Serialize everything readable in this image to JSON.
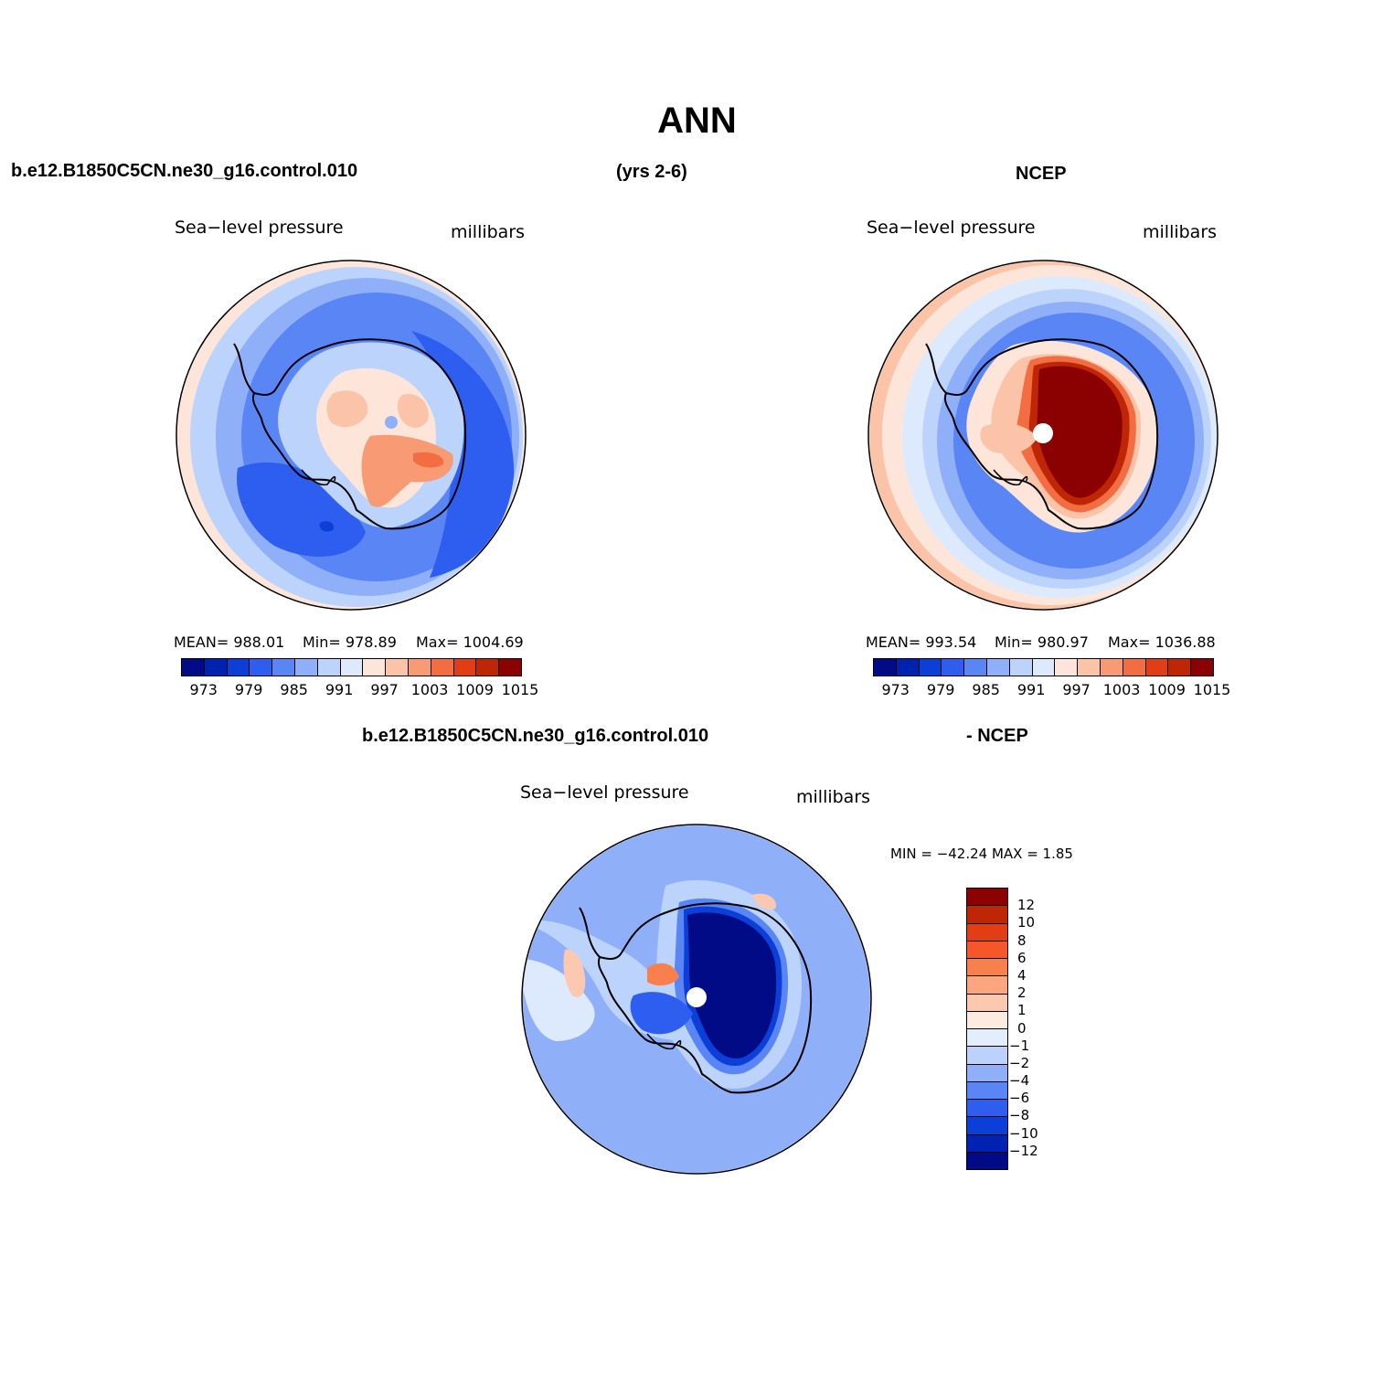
{
  "title": "ANN",
  "header": {
    "case": "b.e12.B1850C5CN.ne30_g16.control.010",
    "years": "(yrs 2-6)",
    "obs": "NCEP",
    "diff_case": "b.e12.B1850C5CN.ne30_g16.control.010",
    "diff_obs": "- NCEP"
  },
  "panels": {
    "model": {
      "variable": "Sea−level pressure",
      "units": "millibars",
      "mean": "MEAN=  988.01",
      "min": "Min=  978.89",
      "max": "Max=  1004.69"
    },
    "obs": {
      "variable": "Sea−level pressure",
      "units": "millibars",
      "mean": "MEAN=  993.54",
      "min": "Min=  980.97",
      "max": "Max=  1036.88"
    },
    "diff": {
      "variable": "Sea−level pressure",
      "units": "millibars",
      "minmax": "MIN = −42.24  MAX =     1.85"
    }
  },
  "colorbar_abs": {
    "colors": [
      "#000b85",
      "#0022b0",
      "#0c3fd8",
      "#2e5ef0",
      "#5a86f5",
      "#8fb0f8",
      "#bcd3fb",
      "#ddeafd",
      "#fde6d9",
      "#fbc4a8",
      "#f89a73",
      "#f26d42",
      "#e23e16",
      "#bf2606",
      "#8b0000"
    ],
    "labels": [
      "973",
      "979",
      "985",
      "991",
      "997",
      "1003",
      "1009",
      "1015"
    ]
  },
  "colorbar_diff": {
    "colors": [
      "#8b0000",
      "#bf2606",
      "#e23e16",
      "#f5562a",
      "#f8804c",
      "#fba67e",
      "#fcc9b0",
      "#feebdf",
      "#e3eefd",
      "#bcd2fb",
      "#8fb0f8",
      "#5a86f5",
      "#2e5ef0",
      "#0c3fd8",
      "#0022b0",
      "#000b85"
    ],
    "labels": [
      "12",
      "10",
      "8",
      "6",
      "4",
      "2",
      "1",
      "0",
      "−1",
      "−2",
      "−4",
      "−6",
      "−8",
      "−10",
      "−12"
    ]
  },
  "chart_data": [
    {
      "type": "heatmap",
      "title": "Sea−level pressure",
      "subtitle": "b.e12.B1850C5CN.ne30_g16.control.010 (yrs 2-6)",
      "units": "millibars",
      "projection": "south polar stereographic",
      "contour_levels": [
        973,
        976,
        979,
        982,
        985,
        988,
        991,
        994,
        997,
        1000,
        1003,
        1006,
        1009,
        1012,
        1015
      ],
      "mean": 988.01,
      "min": 978.89,
      "max": 1004.69
    },
    {
      "type": "heatmap",
      "title": "Sea−level pressure",
      "subtitle": "NCEP",
      "units": "millibars",
      "projection": "south polar stereographic",
      "contour_levels": [
        973,
        976,
        979,
        982,
        985,
        988,
        991,
        994,
        997,
        1000,
        1003,
        1006,
        1009,
        1012,
        1015
      ],
      "mean": 993.54,
      "min": 980.97,
      "max": 1036.88
    },
    {
      "type": "heatmap",
      "title": "Sea−level pressure",
      "subtitle": "b.e12.B1850C5CN.ne30_g16.control.010 - NCEP",
      "units": "millibars",
      "projection": "south polar stereographic",
      "contour_levels": [
        -12,
        -10,
        -8,
        -6,
        -4,
        -2,
        -1,
        0,
        1,
        2,
        4,
        6,
        8,
        10,
        12
      ],
      "min": -42.24,
      "max": 1.85
    }
  ]
}
